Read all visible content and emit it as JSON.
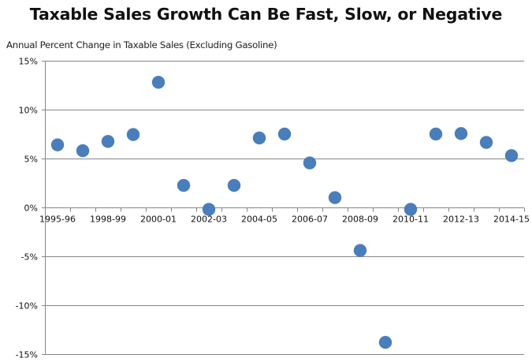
{
  "chart_data": {
    "type": "scatter",
    "title": "Taxable Sales Growth Can Be Fast, Slow, or Negative",
    "ylabel": "Annual Percent Change in Taxable Sales (Excluding Gasoline)",
    "xlabel": "",
    "categories": [
      "1995-96",
      "",
      "1998-99",
      "",
      "2000-01",
      "",
      "2002-03",
      "",
      "2004-05",
      "",
      "2006-07",
      "",
      "2008-09",
      "",
      "2010-11",
      "",
      "2012-13",
      "",
      "2014-15"
    ],
    "series": [
      {
        "name": "Annual Percent Change",
        "color": "#4a7ebb",
        "values": [
          6.4,
          5.8,
          6.75,
          7.45,
          12.8,
          2.25,
          -0.2,
          2.25,
          7.1,
          7.5,
          4.55,
          1.0,
          -4.4,
          -13.8,
          -0.2,
          7.5,
          7.55,
          6.65,
          5.3
        ]
      }
    ],
    "ylim": [
      -15,
      15
    ],
    "yticks": [
      15,
      10,
      5,
      0,
      -5,
      -10,
      -15
    ],
    "ytick_labels": [
      "15%",
      "10%",
      "5%",
      "0%",
      "-5%",
      "-10%",
      "-15%"
    ],
    "grid": "horizontal",
    "legend": "none",
    "gridline_color": "#868686",
    "axis_color": "#868686"
  }
}
